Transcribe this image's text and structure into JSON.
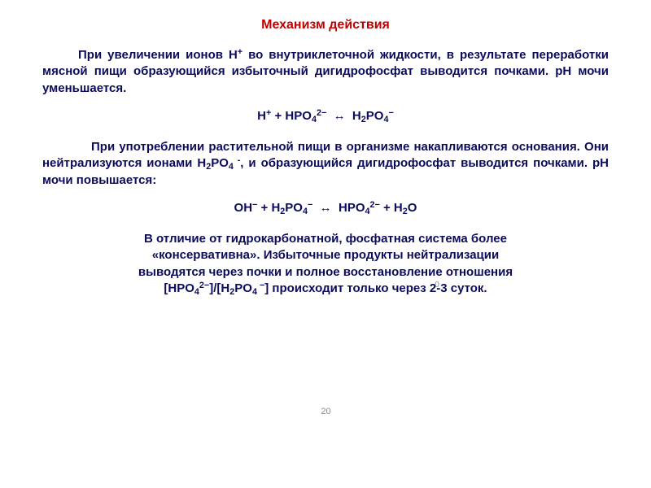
{
  "colors": {
    "title": "#c00000",
    "body": "#0b0b5c",
    "background": "#ffffff",
    "pagenum": "#8a8a8a"
  },
  "fontsizes": {
    "title_pt": 16,
    "body_pt": 15,
    "pagenum_pt": 11
  },
  "title": "Механизм действия",
  "para1": "При увеличении ионов Н⁺ во внутриклеточной жидкости, в результате переработки мясной пищи образующийся избыточный дигидрофосфат выводится почками. рН мочи уменьшается.",
  "equation1": "H⁺ + HPO₄²⁻ ↔ H₂PO₄⁻",
  "para2_lead": "При употреблении растительной пищи в организме накапливаются основания. Они нейтрализуются ионами H₂PO₄⁻, и образующийся дигидрофосфат выводится почками. pH мочи повышается:",
  "equation2": "OH⁻ + H₂PO₄⁻ ↔ HPO₄²⁻ + H₂O",
  "footer_line1": "В отличие от гидрокарбонатной, фосфатная система более",
  "footer_line2": "«консервативна». Избыточные продукты нейтрализации",
  "footer_line3": "выводятся через почки и полное восстановление отношения",
  "footer_line4_prefix": "[HPO₄²⁻]/[H₂PO₄⁻] происходит только через 2-3 суток.",
  "pagenum": "20"
}
